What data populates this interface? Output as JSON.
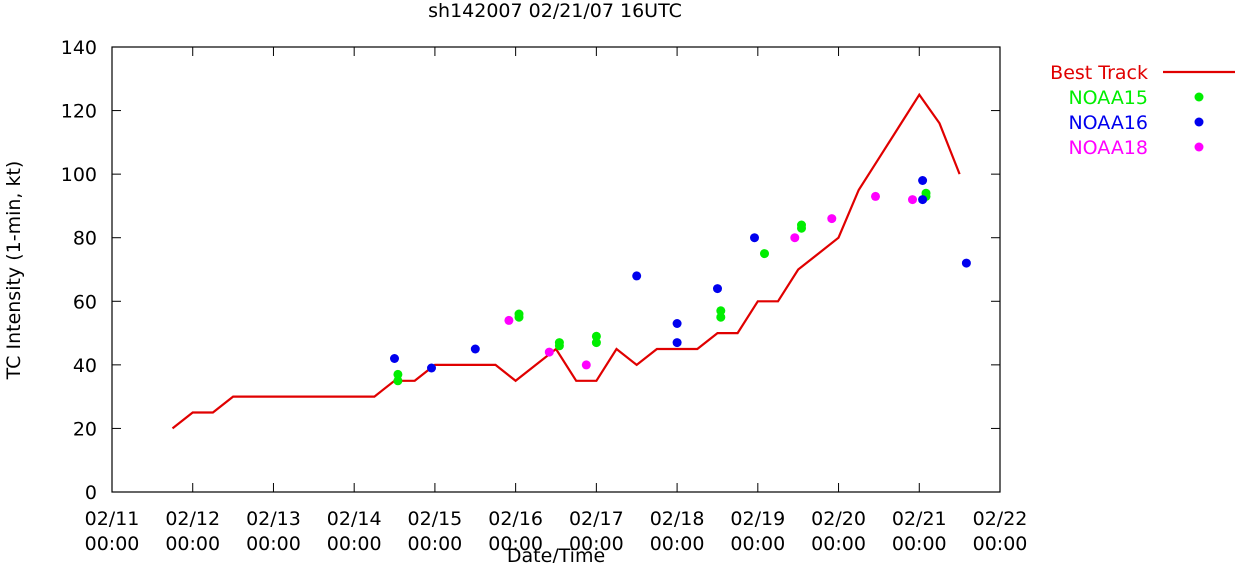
{
  "chart_data": {
    "type": "line",
    "title": "sh142007 02/21/07 16UTC",
    "xlabel": "Date/Time",
    "ylabel": "TC Intensity (1-min, kt)",
    "xlim": [
      "02/11 00:00",
      "02/22 00:00"
    ],
    "ylim": [
      0,
      140
    ],
    "yticks": [
      0,
      20,
      40,
      60,
      80,
      100,
      120,
      140
    ],
    "xticks": [
      {
        "date": "02/11",
        "time": "00:00"
      },
      {
        "date": "02/12",
        "time": "00:00"
      },
      {
        "date": "02/13",
        "time": "00:00"
      },
      {
        "date": "02/14",
        "time": "00:00"
      },
      {
        "date": "02/15",
        "time": "00:00"
      },
      {
        "date": "02/16",
        "time": "00:00"
      },
      {
        "date": "02/17",
        "time": "00:00"
      },
      {
        "date": "02/18",
        "time": "00:00"
      },
      {
        "date": "02/19",
        "time": "00:00"
      },
      {
        "date": "02/20",
        "time": "00:00"
      },
      {
        "date": "02/21",
        "time": "00:00"
      },
      {
        "date": "02/22",
        "time": "00:00"
      }
    ],
    "grid": false,
    "legend": "outside-right",
    "series": [
      {
        "name": "Best Track",
        "kind": "line",
        "color": "#e00000",
        "points": [
          [
            "02/11 18:00",
            20
          ],
          [
            "02/12 00:00",
            25
          ],
          [
            "02/12 06:00",
            25
          ],
          [
            "02/12 12:00",
            30
          ],
          [
            "02/12 18:00",
            30
          ],
          [
            "02/13 00:00",
            30
          ],
          [
            "02/13 06:00",
            30
          ],
          [
            "02/13 12:00",
            30
          ],
          [
            "02/13 18:00",
            30
          ],
          [
            "02/14 00:00",
            30
          ],
          [
            "02/14 06:00",
            30
          ],
          [
            "02/14 12:00",
            35
          ],
          [
            "02/14 18:00",
            35
          ],
          [
            "02/15 00:00",
            40
          ],
          [
            "02/15 06:00",
            40
          ],
          [
            "02/15 12:00",
            40
          ],
          [
            "02/15 18:00",
            40
          ],
          [
            "02/16 00:00",
            35
          ],
          [
            "02/16 06:00",
            40
          ],
          [
            "02/16 12:00",
            45
          ],
          [
            "02/16 18:00",
            35
          ],
          [
            "02/17 00:00",
            35
          ],
          [
            "02/17 06:00",
            45
          ],
          [
            "02/17 12:00",
            40
          ],
          [
            "02/17 18:00",
            45
          ],
          [
            "02/18 00:00",
            45
          ],
          [
            "02/18 06:00",
            45
          ],
          [
            "02/18 12:00",
            50
          ],
          [
            "02/18 18:00",
            50
          ],
          [
            "02/19 00:00",
            60
          ],
          [
            "02/19 06:00",
            60
          ],
          [
            "02/19 12:00",
            70
          ],
          [
            "02/19 18:00",
            75
          ],
          [
            "02/20 00:00",
            80
          ],
          [
            "02/20 06:00",
            95
          ],
          [
            "02/20 12:00",
            105
          ],
          [
            "02/20 18:00",
            115
          ],
          [
            "02/21 00:00",
            125
          ],
          [
            "02/21 06:00",
            116
          ],
          [
            "02/21 12:00",
            100
          ]
        ]
      },
      {
        "name": "NOAA15",
        "kind": "scatter",
        "color": "#00ee00",
        "points": [
          [
            "02/14 13:00",
            37
          ],
          [
            "02/14 13:00",
            35
          ],
          [
            "02/16 01:00",
            56
          ],
          [
            "02/16 01:00",
            55
          ],
          [
            "02/16 13:00",
            47
          ],
          [
            "02/16 13:00",
            46
          ],
          [
            "02/17 00:00",
            49
          ],
          [
            "02/17 00:00",
            47
          ],
          [
            "02/18 13:00",
            57
          ],
          [
            "02/18 13:00",
            55
          ],
          [
            "02/19 02:00",
            75
          ],
          [
            "02/19 13:00",
            84
          ],
          [
            "02/19 13:00",
            83
          ],
          [
            "02/21 02:00",
            94
          ],
          [
            "02/21 02:00",
            93
          ]
        ]
      },
      {
        "name": "NOAA16",
        "kind": "scatter",
        "color": "#0000ee",
        "points": [
          [
            "02/14 12:00",
            42
          ],
          [
            "02/14 23:00",
            39
          ],
          [
            "02/15 12:00",
            45
          ],
          [
            "02/17 12:00",
            68
          ],
          [
            "02/18 00:00",
            53
          ],
          [
            "02/18 00:00",
            47
          ],
          [
            "02/18 12:00",
            64
          ],
          [
            "02/18 23:00",
            80
          ],
          [
            "02/21 01:00",
            98
          ],
          [
            "02/21 01:00",
            92
          ],
          [
            "02/21 14:00",
            72
          ]
        ]
      },
      {
        "name": "NOAA18",
        "kind": "scatter",
        "color": "#ff00ff",
        "points": [
          [
            "02/15 22:00",
            54
          ],
          [
            "02/16 10:00",
            44
          ],
          [
            "02/16 21:00",
            40
          ],
          [
            "02/19 11:00",
            80
          ],
          [
            "02/19 22:00",
            86
          ],
          [
            "02/20 11:00",
            93
          ],
          [
            "02/20 22:00",
            92
          ]
        ]
      }
    ]
  }
}
